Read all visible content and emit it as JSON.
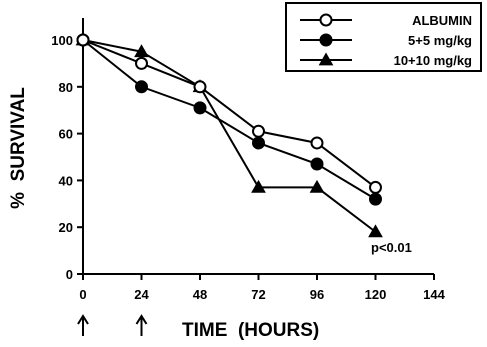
{
  "chart_data": {
    "type": "line",
    "title": "",
    "xlabel": "TIME  (HOURS)",
    "ylabel": "%  SURVIVAL",
    "xlim": [
      0,
      144
    ],
    "ylim": [
      0,
      100
    ],
    "x_ticks": [
      "0",
      "24",
      "48",
      "72",
      "96",
      "120",
      "144"
    ],
    "y_ticks": [
      "0",
      "20",
      "40",
      "60",
      "80",
      "100"
    ],
    "grid": false,
    "legend_position": "top-right",
    "series": [
      {
        "name": "ALBUMIN",
        "marker": "open-circle",
        "points": [
          {
            "x": 0,
            "y": 100
          },
          {
            "x": 24,
            "y": 90
          },
          {
            "x": 48,
            "y": 80
          },
          {
            "x": 72,
            "y": 61
          },
          {
            "x": 96,
            "y": 56
          },
          {
            "x": 120,
            "y": 37
          }
        ]
      },
      {
        "name": "5+5 mg/kg",
        "marker": "filled-circle",
        "points": [
          {
            "x": 0,
            "y": 100
          },
          {
            "x": 24,
            "y": 80
          },
          {
            "x": 48,
            "y": 71
          },
          {
            "x": 72,
            "y": 56
          },
          {
            "x": 96,
            "y": 47
          },
          {
            "x": 120,
            "y": 32
          }
        ]
      },
      {
        "name": "10+10 mg/kg",
        "marker": "filled-triangle",
        "points": [
          {
            "x": 0,
            "y": 100
          },
          {
            "x": 24,
            "y": 95
          },
          {
            "x": 48,
            "y": 80
          },
          {
            "x": 72,
            "y": 37
          },
          {
            "x": 96,
            "y": 37
          },
          {
            "x": 120,
            "y": 18
          }
        ]
      }
    ],
    "annotations": {
      "p_value": "p<0.01",
      "dose_arrows_at_x": [
        0,
        24
      ]
    }
  }
}
